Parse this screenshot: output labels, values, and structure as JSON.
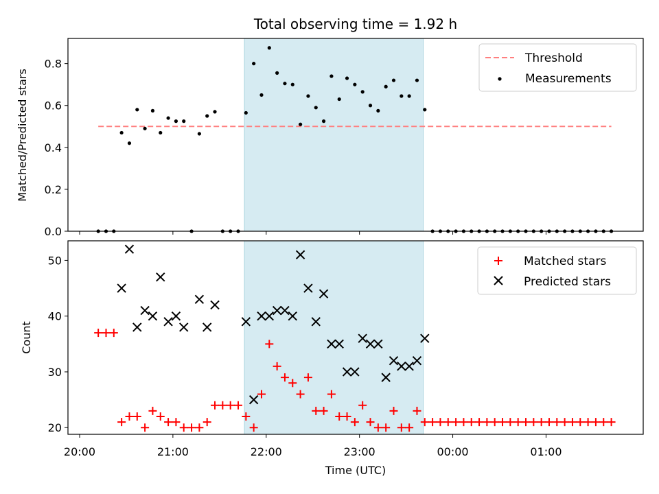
{
  "chart_data": [
    {
      "type": "scatter",
      "title": "Total observing time = 1.92 h",
      "ylabel": "Matched/Predicted stars",
      "xlim": [
        "20:00",
        "02:00"
      ],
      "ylim": [
        0,
        0.92
      ],
      "yticks": [
        "0.0",
        "0.2",
        "0.4",
        "0.6",
        "0.8"
      ],
      "highlight_span": [
        "21:46",
        "23:41"
      ],
      "threshold": {
        "name": "Threshold",
        "value": 0.5,
        "x_range": [
          "20:12",
          "01:42"
        ],
        "color": "#ff7f7f"
      },
      "legend": {
        "placement": "top-right",
        "entries": [
          "Threshold",
          "Measurements"
        ]
      },
      "series": [
        {
          "name": "Measurements",
          "color": "#000000",
          "x": [
            "20:12",
            "20:17",
            "20:22",
            "20:27",
            "20:32",
            "20:37",
            "20:42",
            "20:47",
            "20:52",
            "20:57",
            "21:02",
            "21:07",
            "21:12",
            "21:17",
            "21:22",
            "21:27",
            "21:32",
            "21:37",
            "21:42",
            "21:47",
            "21:52",
            "21:57",
            "22:02",
            "22:07",
            "22:12",
            "22:17",
            "22:22",
            "22:27",
            "22:32",
            "22:37",
            "22:42",
            "22:47",
            "22:52",
            "22:57",
            "23:02",
            "23:07",
            "23:12",
            "23:17",
            "23:22",
            "23:27",
            "23:32",
            "23:37",
            "23:42",
            "23:47",
            "23:52",
            "23:57",
            "00:02",
            "00:07",
            "00:12",
            "00:17",
            "00:22",
            "00:27",
            "00:32",
            "00:37",
            "00:42",
            "00:47",
            "00:52",
            "00:57",
            "01:02",
            "01:07",
            "01:12",
            "01:17",
            "01:22",
            "01:27",
            "01:32",
            "01:37",
            "01:42"
          ],
          "y": [
            0.0,
            0.0,
            0.0,
            0.47,
            0.42,
            0.58,
            0.49,
            0.575,
            0.47,
            0.54,
            0.525,
            0.525,
            0.0,
            0.465,
            0.55,
            0.57,
            0.0,
            0.0,
            0.0,
            0.565,
            0.8,
            0.65,
            0.875,
            0.755,
            0.705,
            0.7,
            0.51,
            0.645,
            0.59,
            0.525,
            0.74,
            0.63,
            0.73,
            0.7,
            0.665,
            0.6,
            0.575,
            0.69,
            0.72,
            0.645,
            0.645,
            0.72,
            0.58,
            0.0,
            0.0,
            0.0,
            0.0,
            0.0,
            0.0,
            0.0,
            0.0,
            0.0,
            0.0,
            0.0,
            0.0,
            0.0,
            0.0,
            0.0,
            0.0,
            0.0,
            0.0,
            0.0,
            0.0,
            0.0,
            0.0,
            0.0,
            0.0
          ]
        }
      ]
    },
    {
      "type": "scatter",
      "xlabel": "Time (UTC)",
      "ylabel": "Count",
      "xlim": [
        "20:00",
        "02:00"
      ],
      "ylim": [
        18.8,
        53.5
      ],
      "xticks": [
        "20:00",
        "21:00",
        "22:00",
        "23:00",
        "00:00",
        "01:00"
      ],
      "yticks": [
        "20",
        "30",
        "40",
        "50"
      ],
      "highlight_span": [
        "21:46",
        "23:41"
      ],
      "legend": {
        "placement": "top-right",
        "entries": [
          "Matched stars",
          "Predicted stars"
        ]
      },
      "series": [
        {
          "name": "Matched stars",
          "marker": "plus",
          "color": "#ff0000",
          "x": [
            "20:12",
            "20:17",
            "20:22",
            "20:27",
            "20:32",
            "20:37",
            "20:42",
            "20:47",
            "20:52",
            "20:57",
            "21:02",
            "21:07",
            "21:12",
            "21:17",
            "21:22",
            "21:27",
            "21:32",
            "21:37",
            "21:42",
            "21:47",
            "21:52",
            "21:57",
            "22:02",
            "22:07",
            "22:12",
            "22:17",
            "22:22",
            "22:27",
            "22:32",
            "22:37",
            "22:42",
            "22:47",
            "22:52",
            "22:57",
            "23:02",
            "23:07",
            "23:12",
            "23:17",
            "23:22",
            "23:27",
            "23:32",
            "23:37",
            "23:42",
            "23:47",
            "23:52",
            "23:57",
            "00:02",
            "00:07",
            "00:12",
            "00:17",
            "00:22",
            "00:27",
            "00:32",
            "00:37",
            "00:42",
            "00:47",
            "00:52",
            "00:57",
            "01:02",
            "01:07",
            "01:12",
            "01:17",
            "01:22",
            "01:27",
            "01:32",
            "01:37",
            "01:42"
          ],
          "y": [
            37,
            37,
            37,
            21,
            22,
            22,
            20,
            23,
            22,
            21,
            21,
            20,
            20,
            20,
            21,
            24,
            24,
            24,
            24,
            22,
            20,
            26,
            35,
            31,
            29,
            28,
            26,
            29,
            23,
            23,
            26,
            22,
            22,
            21,
            24,
            21,
            20,
            20,
            23,
            20,
            20,
            23,
            21,
            21,
            21,
            21,
            21,
            21,
            21,
            21,
            21,
            21,
            21,
            21,
            21,
            21,
            21,
            21,
            21,
            21,
            21,
            21,
            21,
            21,
            21,
            21,
            21
          ]
        },
        {
          "name": "Predicted stars",
          "marker": "x",
          "color": "#000000",
          "x": [
            "20:27",
            "20:32",
            "20:37",
            "20:42",
            "20:47",
            "20:52",
            "20:57",
            "21:02",
            "21:07",
            "21:17",
            "21:22",
            "21:27",
            "21:47",
            "21:52",
            "21:57",
            "22:02",
            "22:07",
            "22:12",
            "22:17",
            "22:22",
            "22:27",
            "22:32",
            "22:37",
            "22:42",
            "22:47",
            "22:52",
            "22:57",
            "23:02",
            "23:07",
            "23:12",
            "23:17",
            "23:22",
            "23:27",
            "23:32",
            "23:37",
            "23:42"
          ],
          "y": [
            45,
            52,
            38,
            41,
            40,
            47,
            39,
            40,
            38,
            43,
            38,
            42,
            39,
            25,
            40,
            40,
            41,
            41,
            40,
            51,
            45,
            39,
            44,
            35,
            35,
            30,
            30,
            36,
            35,
            35,
            29,
            32,
            31,
            31,
            32,
            36
          ]
        }
      ]
    }
  ]
}
